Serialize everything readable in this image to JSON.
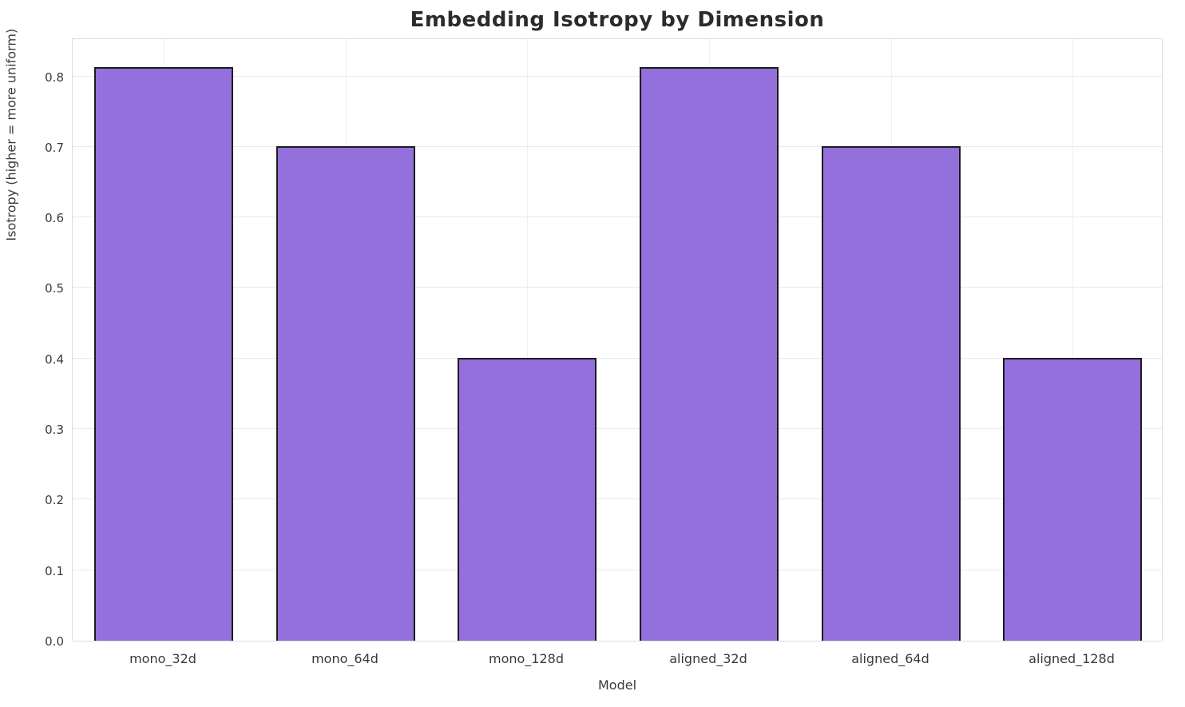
{
  "chart_data": {
    "type": "bar",
    "title": "Embedding Isotropy by Dimension",
    "xlabel": "Model",
    "ylabel": "Isotropy (higher = more uniform)",
    "categories": [
      "mono_32d",
      "mono_64d",
      "mono_128d",
      "aligned_32d",
      "aligned_64d",
      "aligned_128d"
    ],
    "values": [
      0.813,
      0.701,
      0.401,
      0.813,
      0.701,
      0.401
    ],
    "ylim": [
      0,
      0.855
    ],
    "yticks": [
      0.0,
      0.1,
      0.2,
      0.3,
      0.4,
      0.5,
      0.6,
      0.7,
      0.8
    ],
    "grid": true,
    "legend": "none",
    "bar_color": "#9370DB",
    "bar_edge_color": "#1c1c1c",
    "grid_color": "#e9e9e9",
    "background": "#ffffff"
  }
}
